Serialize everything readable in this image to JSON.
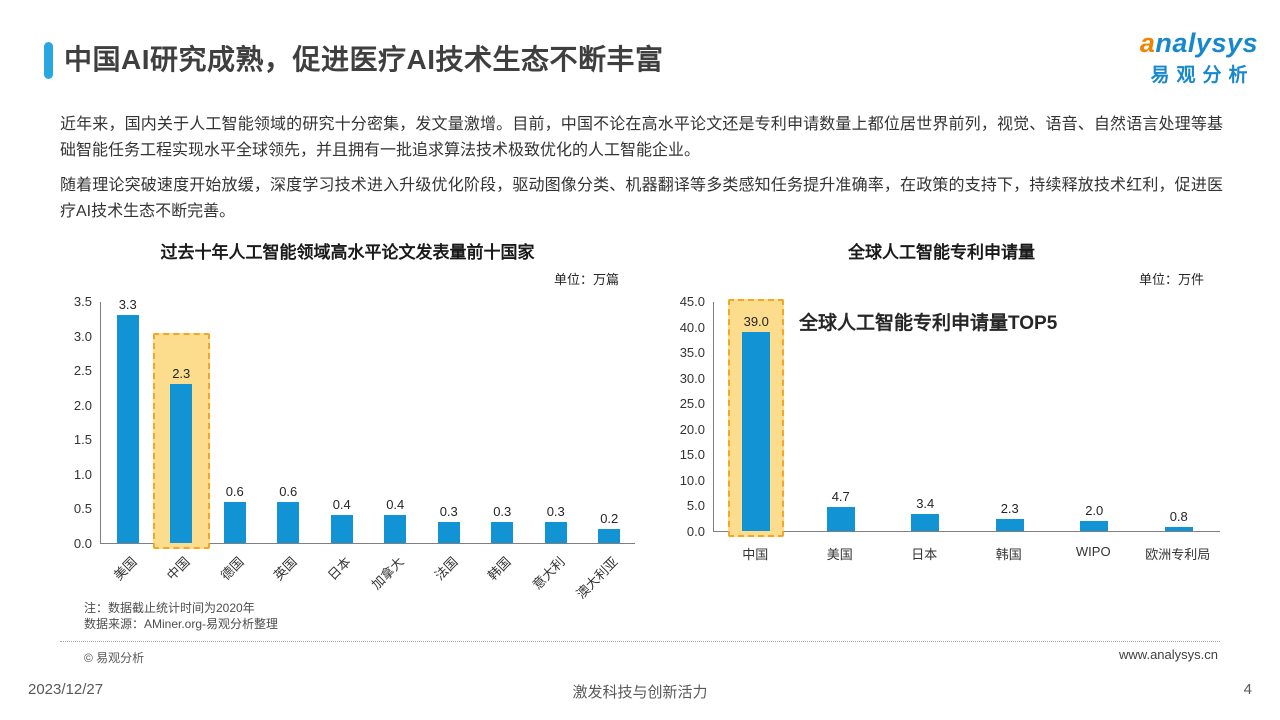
{
  "header": {
    "title": "中国AI研究成熟，促进医疗AI技术生态不断丰富",
    "logo_en": "analysys",
    "logo_cn": "易观分析"
  },
  "paragraphs": [
    "近年来，国内关于人工智能领域的研究十分密集，发文量激增。目前，中国不论在高水平论文还是专利申请数量上都位居世界前列，视觉、语音、自然语言处理等基础智能任务工程实现水平全球领先，并且拥有一批追求算法技术极致优化的人工智能企业。",
    "随着理论突破速度开始放缓，深度学习技术进入升级优化阶段，驱动图像分类、机器翻译等多类感知任务提升准确率，在政策的支持下，持续释放技术红利，促进医疗AI技术生态不断完善。"
  ],
  "chart_data": [
    {
      "type": "bar",
      "title": "过去十年人工智能领域高水平论文发表量前十国家",
      "unit": "单位：万篇",
      "categories": [
        "美国",
        "中国",
        "德国",
        "英国",
        "日本",
        "加拿大",
        "法国",
        "韩国",
        "意大利",
        "澳大利亚"
      ],
      "values": [
        3.3,
        2.3,
        0.6,
        0.6,
        0.4,
        0.4,
        0.3,
        0.3,
        0.3,
        0.2
      ],
      "ylim": [
        0,
        3.5
      ],
      "ytick_step": 0.5,
      "grid": false,
      "legend": false,
      "bar_color": "#1193d4",
      "highlight": {
        "index": 1,
        "top_value": 3.05,
        "fill": "#fbdd8d",
        "border": "#f5a623"
      }
    },
    {
      "type": "bar",
      "title": "全球人工智能专利申请量",
      "unit": "单位：万件",
      "categories": [
        "中国",
        "美国",
        "日本",
        "韩国",
        "WIPO",
        "欧洲专利局"
      ],
      "values": [
        39.0,
        4.7,
        3.4,
        2.3,
        2.0,
        0.8
      ],
      "ylim": [
        0,
        45
      ],
      "ytick_step": 5,
      "grid": false,
      "legend": false,
      "bar_color": "#1193d4",
      "annotation": "全球人工智能专利申请量TOP5",
      "highlight": {
        "index": 0,
        "top_value": 45.5,
        "fill": "#fbdd8d",
        "border": "#f5a623"
      }
    }
  ],
  "notes": [
    "注：数据截止统计时间为2020年",
    "数据来源：AMiner.org-易观分析整理"
  ],
  "legal": {
    "copyright": "© 易观分析",
    "website": "www.analysys.cn"
  },
  "footer": {
    "date": "2023/12/27",
    "slogan": "激发科技与创新活力",
    "page": "4"
  }
}
